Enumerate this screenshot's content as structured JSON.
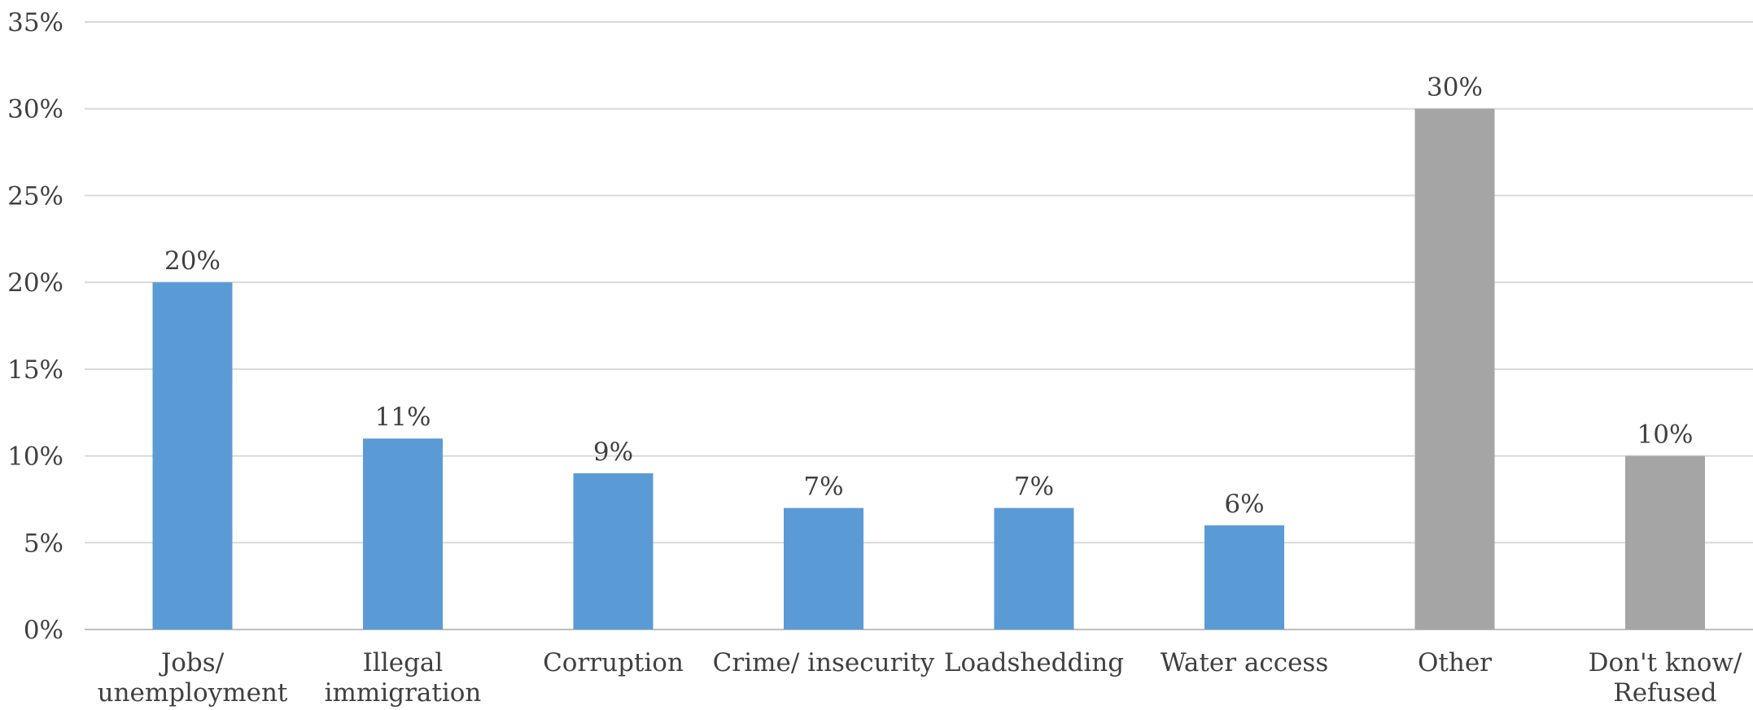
{
  "chart_data": {
    "type": "bar",
    "categories": [
      [
        "Jobs/",
        "unemployment"
      ],
      [
        "Illegal",
        "immigration"
      ],
      [
        "Corruption"
      ],
      [
        "Crime/ insecurity"
      ],
      [
        "Loadshedding"
      ],
      [
        "Water access"
      ],
      [
        "Other"
      ],
      [
        "Don't know/",
        "Refused"
      ]
    ],
    "values": [
      20,
      11,
      9,
      7,
      7,
      6,
      30,
      10
    ],
    "value_labels": [
      "20%",
      "11%",
      "9%",
      "7%",
      "7%",
      "6%",
      "30%",
      "10%"
    ],
    "bar_colors": [
      "#5b9bd5",
      "#5b9bd5",
      "#5b9bd5",
      "#5b9bd5",
      "#5b9bd5",
      "#5b9bd5",
      "#a5a5a5",
      "#a5a5a5"
    ],
    "ylim": [
      0,
      35
    ],
    "yticks": [
      0,
      5,
      10,
      15,
      20,
      25,
      30,
      35
    ],
    "ytick_labels": [
      "0%",
      "5%",
      "10%",
      "15%",
      "20%",
      "25%",
      "30%",
      "35%"
    ],
    "grid": true,
    "gridline_color": "#d9d9d9",
    "axis_color": "#bfbfbf",
    "text_color": "#404040",
    "title": "",
    "xlabel": "",
    "ylabel": ""
  }
}
